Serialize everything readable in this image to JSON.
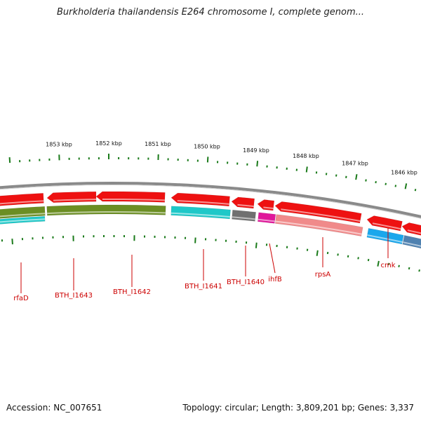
{
  "title": "Burkholderia thailandensis E264 chromosome I, complete genom...",
  "footer": {
    "accession": "Accession: NC_007651",
    "topology": "Topology: circular; Length: 3,809,201 bp; Genes: 3,337"
  },
  "colors": {
    "red_cds": "#ee1111",
    "olive_cds": "#6b8e23",
    "cyan_cds": "#1ec8c8",
    "gray_cds": "#707070",
    "magenta_cds": "#e0179a",
    "pink_cds": "#f08a8a",
    "blue_cds": "#1aa7ec",
    "steel_cds": "#4f81b0",
    "label_red": "#cc0000",
    "tick_green": "#1a7a1a"
  },
  "kbp_labels": [
    "1853 kbp",
    "1852 kbp",
    "1851 kbp",
    "1850 kbp",
    "1849 kbp",
    "1848 kbp",
    "1847 kbp",
    "1846 kbp"
  ],
  "gene_labels": [
    "rfaD",
    "BTH_I1643",
    "BTH_I1642",
    "BTH_I1641",
    "BTH_I1640",
    "ihfB",
    "rpsA",
    "cmk"
  ]
}
